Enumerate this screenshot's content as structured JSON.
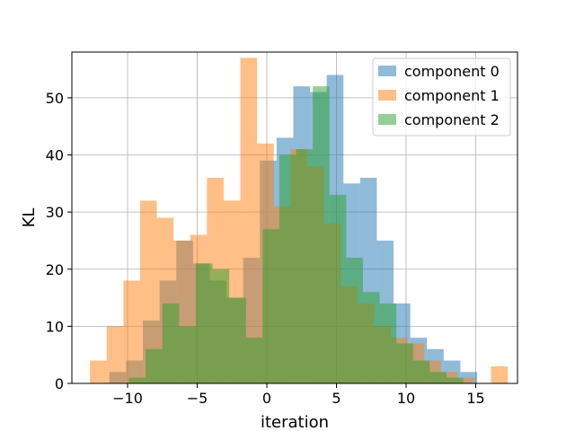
{
  "chart_data": {
    "type": "bar",
    "subtype": "overlapping-histogram",
    "title": "",
    "xlabel": "iteration",
    "ylabel": "KL",
    "xlim": [
      -14,
      18
    ],
    "ylim": [
      0,
      58
    ],
    "x_ticks": [
      -10,
      -5,
      0,
      5,
      10,
      15
    ],
    "x_tick_labels": [
      "−10",
      "−5",
      "0",
      "5",
      "10",
      "15"
    ],
    "y_ticks": [
      0,
      10,
      20,
      30,
      40,
      50
    ],
    "y_tick_labels": [
      "0",
      "10",
      "20",
      "30",
      "40",
      "50"
    ],
    "grid": true,
    "legend_position": "top-right",
    "series": [
      {
        "name": "component 0",
        "color": "#1f77b4",
        "alpha": 0.5,
        "bins": [
          [
            -11.3,
            -10.1,
            2
          ],
          [
            -10.1,
            -8.9,
            4
          ],
          [
            -8.9,
            -7.7,
            11
          ],
          [
            -7.7,
            -6.5,
            18
          ],
          [
            -6.5,
            -5.3,
            25
          ],
          [
            -5.3,
            -4.1,
            21
          ],
          [
            -4.1,
            -2.9,
            18
          ],
          [
            -2.9,
            -1.7,
            15
          ],
          [
            -1.7,
            -0.5,
            22
          ],
          [
            -0.5,
            0.7,
            39
          ],
          [
            0.7,
            1.9,
            43
          ],
          [
            1.9,
            3.1,
            52
          ],
          [
            3.1,
            4.3,
            51
          ],
          [
            4.3,
            5.5,
            54
          ],
          [
            5.5,
            6.7,
            35
          ],
          [
            6.7,
            7.9,
            36
          ],
          [
            7.9,
            9.1,
            25
          ],
          [
            9.1,
            10.3,
            14
          ],
          [
            10.3,
            11.5,
            8
          ],
          [
            11.5,
            12.7,
            6
          ],
          [
            12.7,
            13.9,
            4
          ],
          [
            13.9,
            15.1,
            2
          ]
        ]
      },
      {
        "name": "component 1",
        "color": "#ff7f0e",
        "alpha": 0.5,
        "bins": [
          [
            -12.7,
            -11.5,
            4
          ],
          [
            -11.5,
            -10.3,
            10
          ],
          [
            -10.3,
            -9.1,
            18
          ],
          [
            -9.1,
            -7.9,
            32
          ],
          [
            -7.9,
            -6.7,
            29
          ],
          [
            -6.7,
            -5.5,
            25
          ],
          [
            -5.5,
            -4.3,
            26
          ],
          [
            -4.3,
            -3.1,
            36
          ],
          [
            -3.1,
            -1.9,
            32
          ],
          [
            -1.9,
            -0.7,
            57
          ],
          [
            -0.7,
            0.5,
            42
          ],
          [
            0.5,
            1.7,
            31
          ],
          [
            1.7,
            2.9,
            41
          ],
          [
            2.9,
            4.1,
            38
          ],
          [
            4.1,
            5.3,
            28
          ],
          [
            5.3,
            6.5,
            17
          ],
          [
            6.5,
            7.7,
            14
          ],
          [
            7.7,
            8.9,
            10
          ],
          [
            8.9,
            10.1,
            8
          ],
          [
            10.1,
            11.3,
            7
          ],
          [
            11.3,
            12.5,
            4
          ],
          [
            12.5,
            13.7,
            2
          ],
          [
            13.7,
            14.9,
            1
          ],
          [
            14.9,
            16.1,
            0
          ],
          [
            16.1,
            17.3,
            3
          ]
        ]
      },
      {
        "name": "component 2",
        "color": "#2ca02c",
        "alpha": 0.5,
        "bins": [
          [
            -9.9,
            -8.7,
            1
          ],
          [
            -8.7,
            -7.5,
            6
          ],
          [
            -7.5,
            -6.3,
            14
          ],
          [
            -6.3,
            -5.1,
            10
          ],
          [
            -5.1,
            -3.9,
            21
          ],
          [
            -3.9,
            -2.7,
            20
          ],
          [
            -2.7,
            -1.5,
            15
          ],
          [
            -1.5,
            -0.3,
            8
          ],
          [
            -0.3,
            0.9,
            27
          ],
          [
            0.9,
            2.1,
            40
          ],
          [
            2.1,
            3.3,
            41
          ],
          [
            3.3,
            4.5,
            52
          ],
          [
            4.5,
            5.7,
            33
          ],
          [
            5.7,
            6.9,
            22
          ],
          [
            6.9,
            8.1,
            16
          ],
          [
            8.1,
            9.3,
            14
          ],
          [
            9.3,
            10.5,
            7
          ],
          [
            10.5,
            11.7,
            4
          ],
          [
            11.7,
            12.9,
            2
          ],
          [
            12.9,
            14.1,
            1
          ]
        ]
      }
    ]
  }
}
